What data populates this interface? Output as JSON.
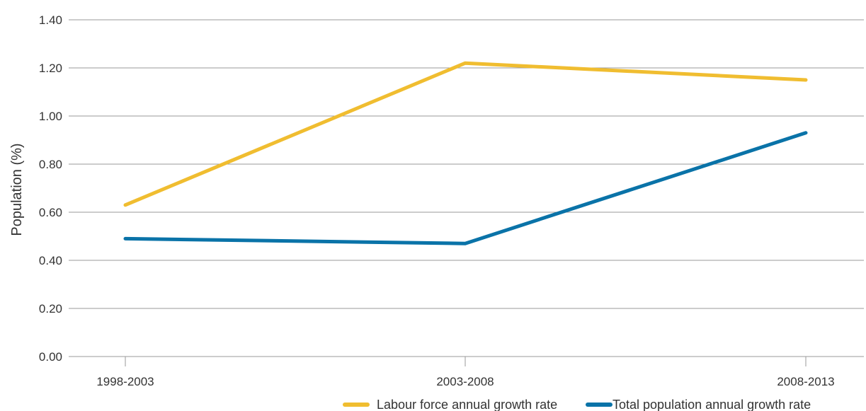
{
  "chart_data": {
    "type": "line",
    "categories": [
      "1998-2003",
      "2003-2008",
      "2008-2013"
    ],
    "series": [
      {
        "name": "Labour force annual growth rate",
        "values": [
          0.63,
          1.22,
          1.15
        ],
        "color": "#f0bd30"
      },
      {
        "name": "Total population annual growth rate",
        "values": [
          0.49,
          0.47,
          0.93
        ],
        "color": "#0a73a8"
      }
    ],
    "title": "",
    "xlabel": "",
    "ylabel": "Population (%)",
    "ylim": [
      0,
      1.4
    ],
    "yticks": [
      "0.00",
      "0.20",
      "0.40",
      "0.60",
      "0.80",
      "1.00",
      "1.20",
      "1.40"
    ],
    "grid": true,
    "legend_position": "bottom-right"
  }
}
